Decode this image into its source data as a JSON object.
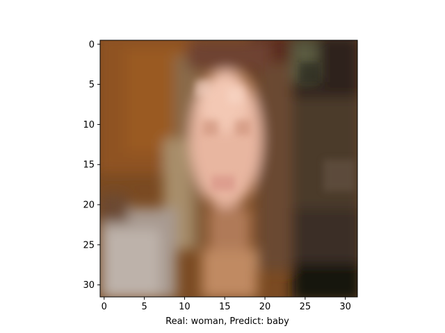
{
  "figure": {
    "xlabel": "Real: woman, Predict: baby",
    "image_alt": "low-resolution photo"
  },
  "axes": {
    "x_ticks": [
      "0",
      "5",
      "10",
      "15",
      "20",
      "25",
      "30"
    ],
    "y_ticks": [
      "0",
      "5",
      "10",
      "15",
      "20",
      "25",
      "30"
    ],
    "xlim": [
      -0.5,
      31.5
    ],
    "ylim": [
      31.5,
      -0.5
    ],
    "grid": false,
    "image_size": [
      32,
      32
    ]
  }
}
